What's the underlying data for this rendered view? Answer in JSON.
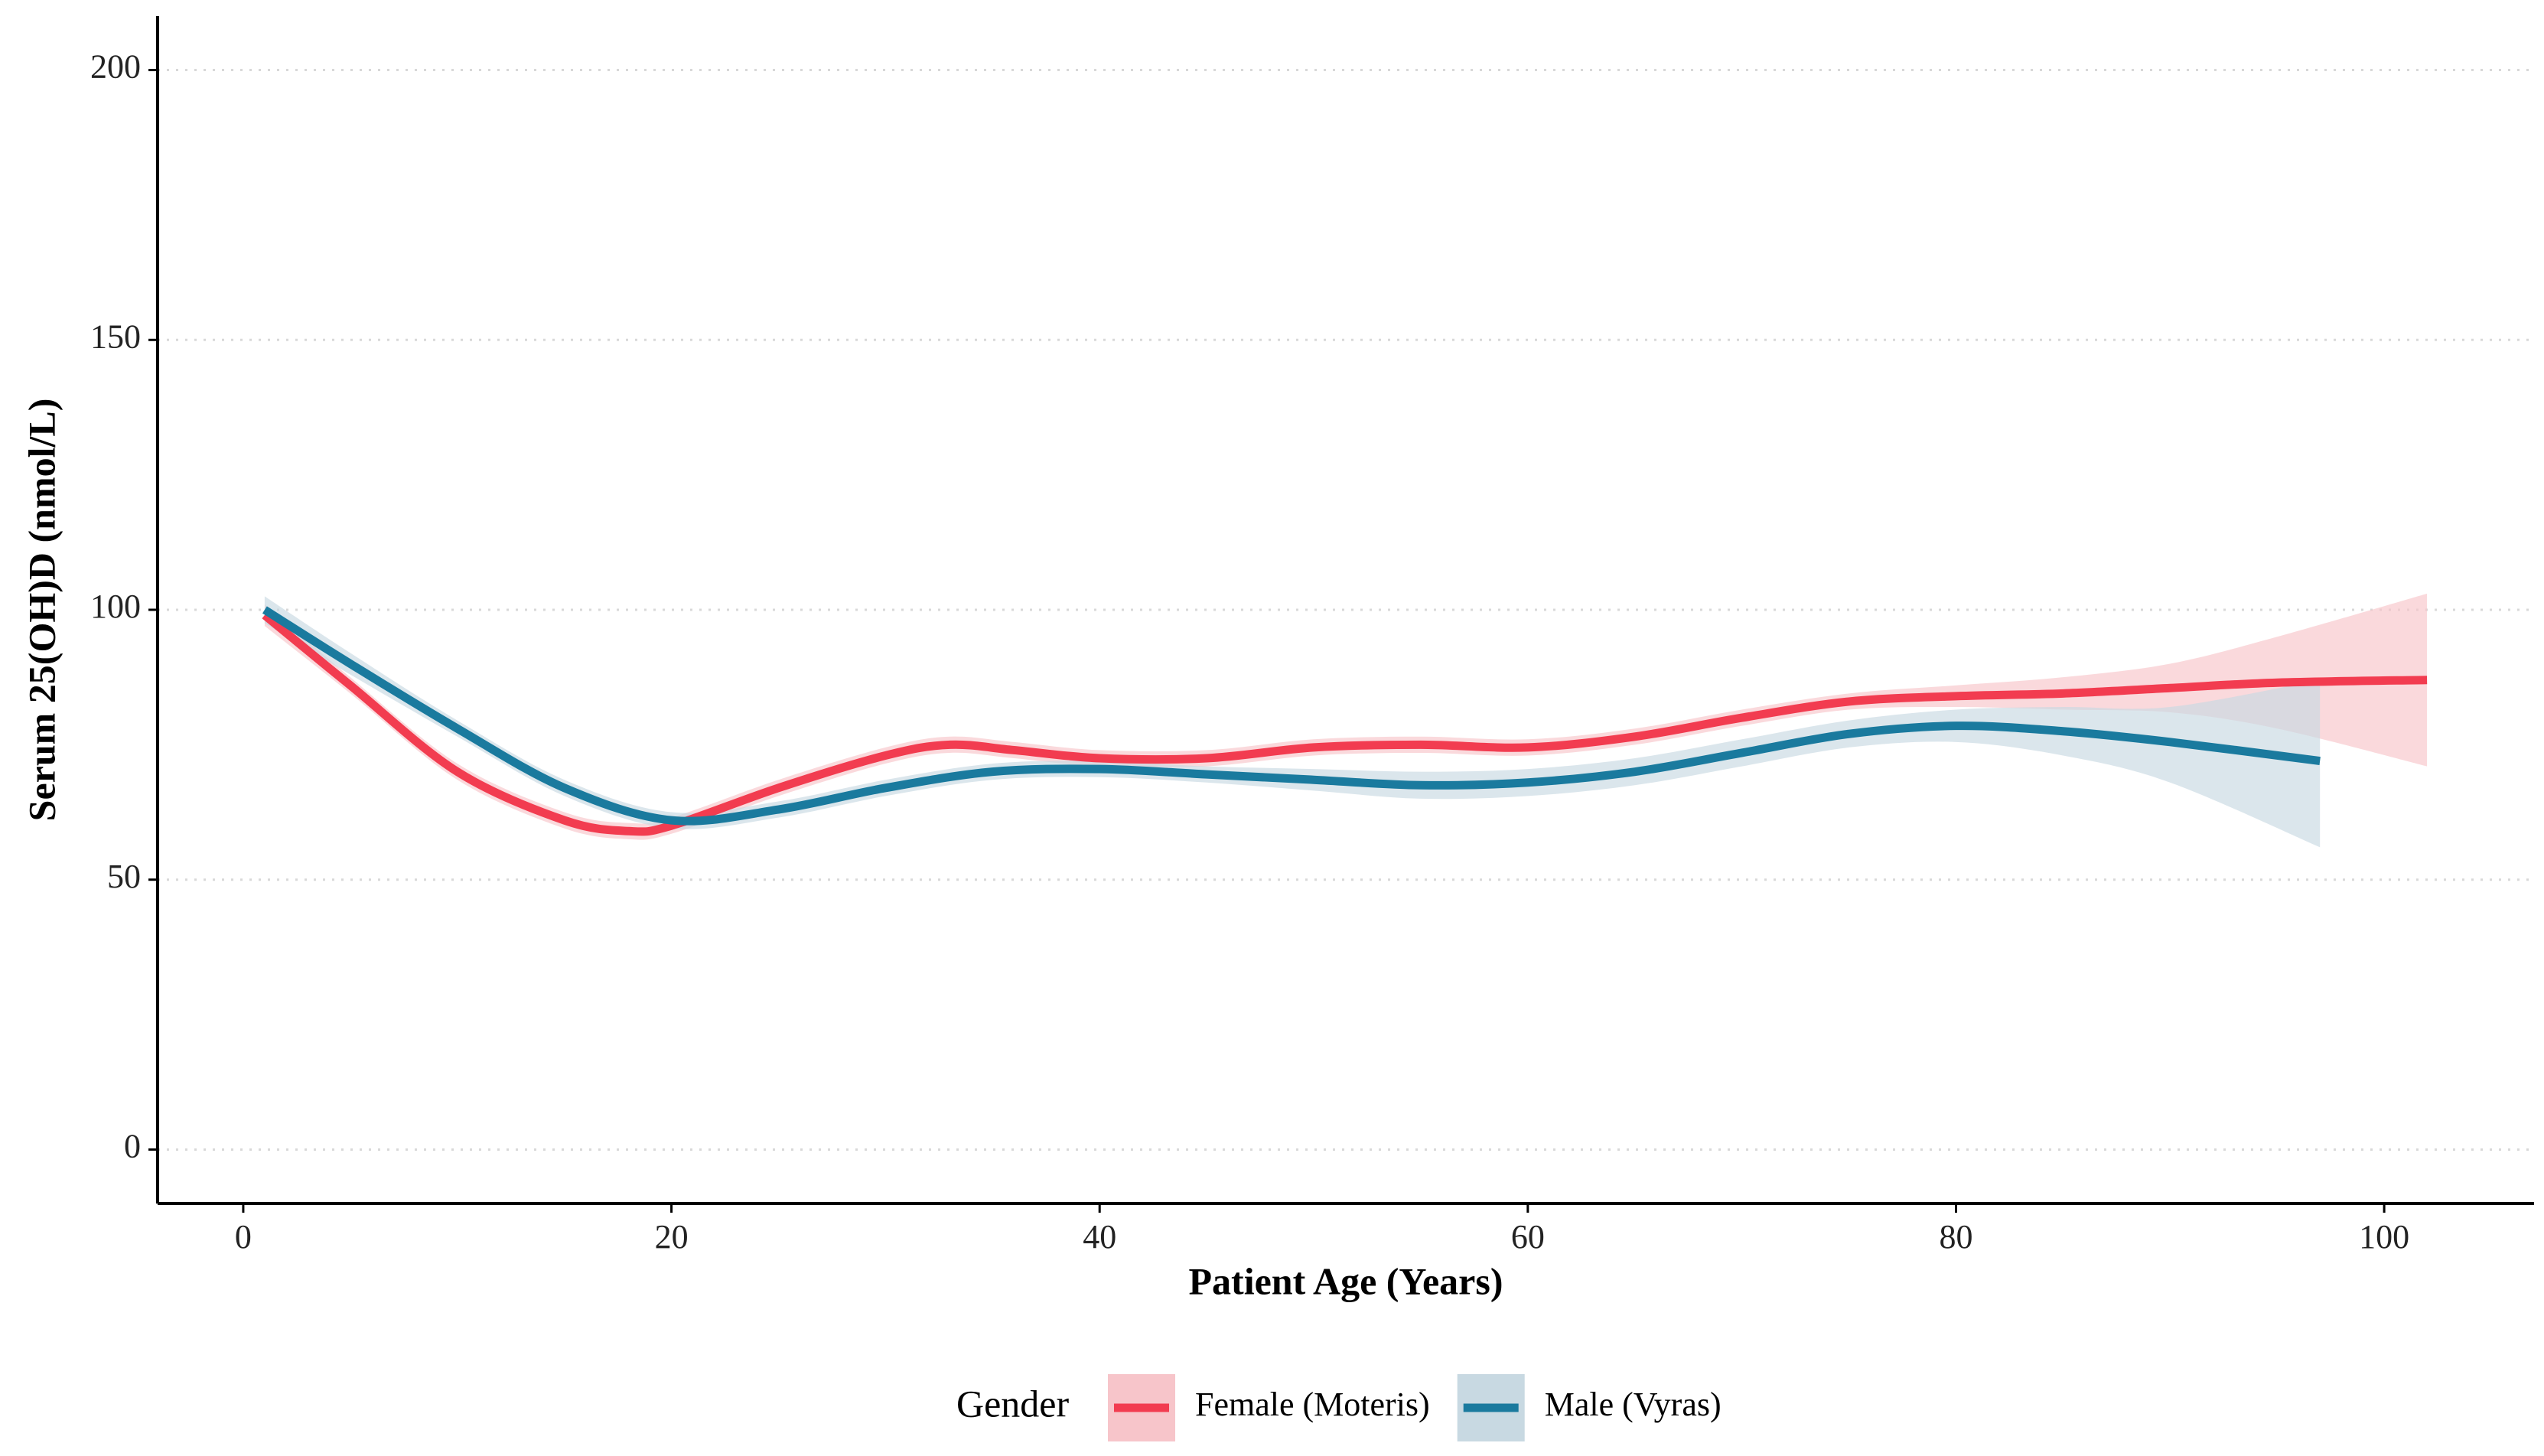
{
  "chart_data": {
    "type": "line",
    "x_label": "Patient Age (Years)",
    "y_label": "Serum 25(OH)D (nmol/L)",
    "legend_title": "Gender",
    "legend_position": "bottom",
    "grid": "y",
    "xlim": [
      -4,
      107
    ],
    "ylim": [
      -10,
      210
    ],
    "xticks": [
      0,
      20,
      40,
      60,
      80,
      100
    ],
    "yticks": [
      0,
      50,
      100,
      150,
      200
    ],
    "series": [
      {
        "name": "Female (Moteris)",
        "color": "#f23c50",
        "band_color": "#f7c5ca",
        "x": [
          1,
          5,
          10,
          15,
          18,
          20,
          25,
          30,
          33,
          36,
          40,
          45,
          50,
          55,
          60,
          65,
          70,
          75,
          80,
          85,
          90,
          95,
          102
        ],
        "values": [
          99,
          86,
          70,
          61,
          59,
          60,
          67,
          73,
          75,
          74,
          72.5,
          72.5,
          74.5,
          75,
          74.5,
          76.5,
          80,
          83,
          84,
          84.5,
          85.5,
          86.5,
          87
        ],
        "lower": [
          97,
          84.5,
          68.5,
          59.5,
          57.5,
          58.5,
          65.5,
          71.5,
          73.5,
          72.5,
          71,
          71,
          73,
          73.5,
          73,
          75,
          78.5,
          81.5,
          82,
          81.5,
          81,
          78,
          71
        ],
        "upper": [
          101,
          87.5,
          71.5,
          62.5,
          60.5,
          61.5,
          68.5,
          74.5,
          76.5,
          75.5,
          74,
          74,
          76,
          76.5,
          76,
          78,
          81.5,
          84.5,
          86,
          87.5,
          90,
          95,
          103
        ]
      },
      {
        "name": "Male (Vyras)",
        "color": "#1a7a9e",
        "band_color": "#c8d9e2",
        "x": [
          1,
          5,
          10,
          15,
          20,
          25,
          30,
          35,
          40,
          45,
          50,
          55,
          60,
          65,
          70,
          75,
          80,
          85,
          90,
          97
        ],
        "values": [
          100,
          90,
          78,
          67,
          61,
          63,
          67,
          70,
          70.5,
          69.5,
          68.5,
          67.5,
          68,
          70,
          73.5,
          77,
          78.5,
          77.5,
          75.5,
          72
        ],
        "lower": [
          97.5,
          88,
          76.5,
          65.5,
          59.5,
          61.5,
          65.5,
          68.5,
          69,
          68,
          66.5,
          65,
          65.5,
          67.5,
          71,
          74.5,
          75.5,
          73,
          68,
          56
        ],
        "upper": [
          102.5,
          92,
          79.5,
          68.5,
          62.5,
          64.5,
          68.5,
          71.5,
          72,
          71,
          70.5,
          70,
          70.5,
          72.5,
          76,
          79.5,
          81.5,
          82,
          82,
          87
        ]
      }
    ]
  }
}
